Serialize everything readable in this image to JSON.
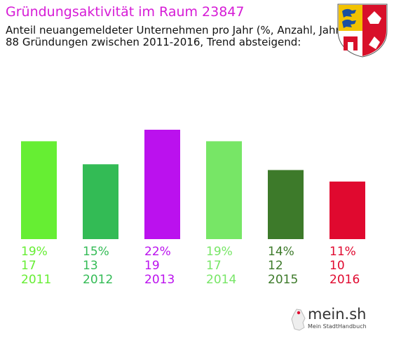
{
  "header": {
    "title": "Gründungsaktivität im Raum 23847",
    "subtitle_line1": "Anteil neuangemeldeter Unternehmen pro Jahr (%, Anzahl, Jahr)",
    "subtitle_line2": "88 Gründungen zwischen 2011-2016, Trend absteigend:"
  },
  "logo": {
    "name": "mein.sh",
    "tagline": "Mein StadtHandbuch"
  },
  "crest_icon": "schleswig-holstein-coat-of-arms-icon",
  "chart_data": {
    "type": "bar",
    "categories": [
      "2011",
      "2012",
      "2013",
      "2014",
      "2015",
      "2016"
    ],
    "percent_labels": [
      "19%",
      "15%",
      "22%",
      "19%",
      "14%",
      "11%"
    ],
    "values": [
      17,
      13,
      19,
      17,
      12,
      10
    ],
    "colors": [
      "#66ee33",
      "#33bb55",
      "#bb11ee",
      "#77e666",
      "#3d7a2a",
      "#e0092f"
    ],
    "ylim": [
      0,
      19
    ],
    "grid": false
  }
}
